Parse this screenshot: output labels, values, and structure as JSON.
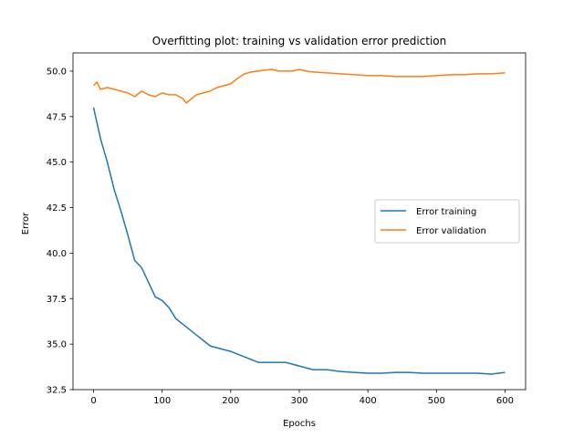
{
  "chart_data": {
    "type": "line",
    "title": "Overfitting plot: training vs validation error prediction",
    "xlabel": "Epochs",
    "ylabel": "Error",
    "xlim": [
      -30,
      630
    ],
    "ylim": [
      32.5,
      51.0
    ],
    "x_ticks": [
      0,
      100,
      200,
      300,
      400,
      500,
      600
    ],
    "x_tick_labels": [
      "0",
      "100",
      "200",
      "300",
      "400",
      "500",
      "600"
    ],
    "y_ticks": [
      32.5,
      35.0,
      37.5,
      40.0,
      42.5,
      45.0,
      47.5,
      50.0
    ],
    "y_tick_labels": [
      "32.5",
      "35.0",
      "37.5",
      "40.0",
      "42.5",
      "45.0",
      "47.5",
      "50.0"
    ],
    "grid": false,
    "legend_position": "center-right",
    "series": [
      {
        "name": "Error training",
        "color": "#1f77b4",
        "x": [
          0,
          10,
          20,
          30,
          40,
          50,
          60,
          70,
          80,
          90,
          100,
          110,
          120,
          130,
          140,
          150,
          160,
          170,
          180,
          190,
          200,
          220,
          240,
          260,
          280,
          300,
          320,
          340,
          360,
          380,
          400,
          420,
          440,
          460,
          480,
          500,
          520,
          540,
          560,
          580,
          600
        ],
        "y": [
          48.0,
          46.3,
          45.0,
          43.5,
          42.3,
          41.0,
          39.6,
          39.2,
          38.4,
          37.6,
          37.4,
          37.0,
          36.4,
          36.1,
          35.8,
          35.5,
          35.2,
          34.9,
          34.8,
          34.7,
          34.6,
          34.3,
          34.0,
          34.0,
          34.0,
          33.8,
          33.6,
          33.6,
          33.5,
          33.45,
          33.4,
          33.4,
          33.45,
          33.45,
          33.4,
          33.4,
          33.4,
          33.4,
          33.4,
          33.35,
          33.45
        ]
      },
      {
        "name": "Error validation",
        "color": "#ff7f0e",
        "x": [
          0,
          5,
          10,
          20,
          30,
          40,
          50,
          60,
          70,
          80,
          90,
          100,
          110,
          120,
          130,
          135,
          140,
          150,
          160,
          170,
          180,
          190,
          200,
          210,
          220,
          230,
          240,
          250,
          260,
          270,
          280,
          290,
          300,
          310,
          320,
          340,
          360,
          380,
          400,
          420,
          440,
          460,
          480,
          500,
          520,
          540,
          560,
          580,
          600
        ],
        "y": [
          49.2,
          49.4,
          49.0,
          49.1,
          49.0,
          48.9,
          48.8,
          48.6,
          48.9,
          48.7,
          48.6,
          48.8,
          48.7,
          48.7,
          48.5,
          48.25,
          48.4,
          48.7,
          48.8,
          48.9,
          49.1,
          49.2,
          49.3,
          49.6,
          49.85,
          49.95,
          50.0,
          50.05,
          50.1,
          50.0,
          50.0,
          50.0,
          50.1,
          50.0,
          49.95,
          49.9,
          49.85,
          49.8,
          49.75,
          49.75,
          49.7,
          49.7,
          49.7,
          49.75,
          49.8,
          49.8,
          49.85,
          49.85,
          49.9
        ]
      }
    ]
  }
}
